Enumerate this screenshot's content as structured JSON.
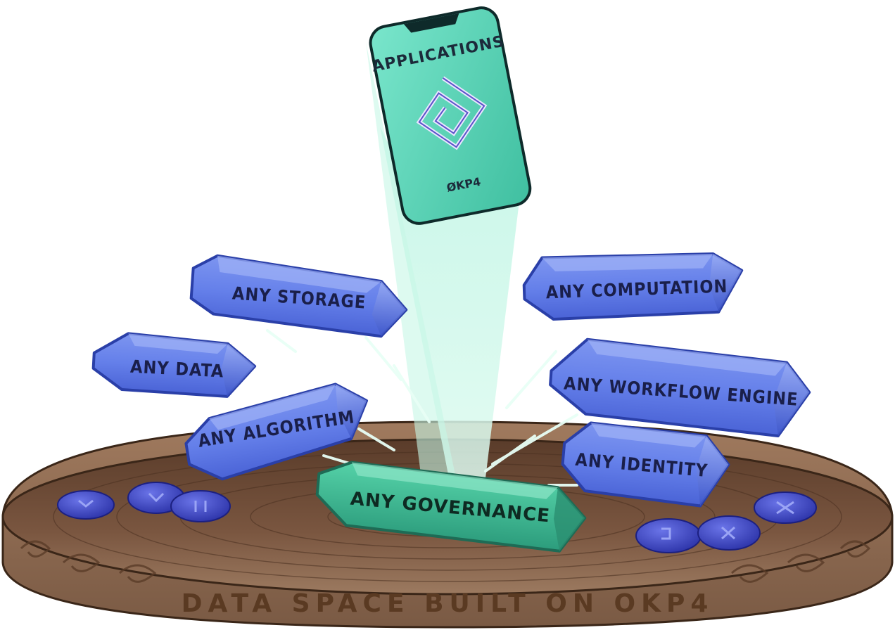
{
  "phone": {
    "title": "APPLICATIONS",
    "brand": "ØKP4"
  },
  "crystals": {
    "storage": "ANY STORAGE",
    "computation": "ANY COMPUTATION",
    "data": "ANY DATA",
    "workflow": "ANY WORKFLOW ENGINE",
    "algorithm": "ANY ALGORITHM",
    "identity": "ANY IDENTITY",
    "governance": "ANY GOVERNANCE"
  },
  "base": {
    "label": "DATA SPACE BUILT ON OKP4"
  },
  "colors": {
    "crystal_blue": "#5b78e6",
    "crystal_blue_dark": "#2f47b8",
    "crystal_green": "#3fbf98",
    "phone_green": "#6fe0c4",
    "wood": "#6a4a34",
    "stone": "#3a3fb8"
  }
}
